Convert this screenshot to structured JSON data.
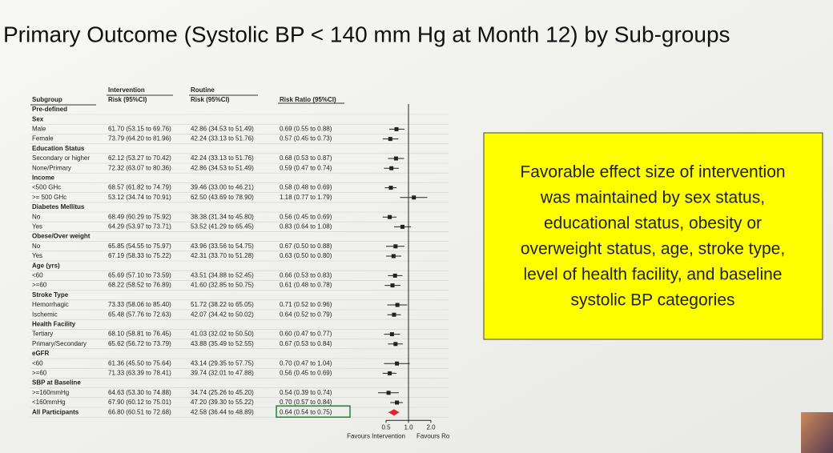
{
  "header": {
    "title": "Primary Outcome (Systolic BP < 140 mm Hg at Month 12) by Sub-groups"
  },
  "table": {
    "group_headers": {
      "intervention": "Intervention",
      "routine": "Routine"
    },
    "columns": {
      "subgroup": "Subgroup",
      "intervention": "Risk (95%CI)",
      "routine": "Risk (95%CI)",
      "ratio": "Risk Ratio (95%CI)"
    },
    "rows": [
      {
        "label": "Pre-defined"
      },
      {
        "label": "Sex"
      },
      {
        "label": "Male",
        "intervention": "61.70 (53.15 to 69.76)",
        "routine": "42.86 (34.53 to 51.49)",
        "ratio": "0.69 (0.55 to 0.88)",
        "rr": [
          0.69,
          0.55,
          0.88
        ]
      },
      {
        "label": "Female",
        "intervention": "73.79 (64.20 to 81.96)",
        "routine": "42.24 (33.13 to 51.76)",
        "ratio": "0.57 (0.45 to 0.73)",
        "rr": [
          0.57,
          0.45,
          0.73
        ]
      },
      {
        "label": "Education Status"
      },
      {
        "label": "Secondary or higher",
        "intervention": "62.12 (53.27 to 70.42)",
        "routine": "42.24 (33.13 to 51.76)",
        "ratio": "0.68 (0.53 to 0.87)",
        "rr": [
          0.68,
          0.53,
          0.87
        ]
      },
      {
        "label": "None/Primary",
        "intervention": "72.32 (63.07 to 80.36)",
        "routine": "42.86 (34.53 to 51.49)",
        "ratio": "0.59 (0.47 to 0.74)",
        "rr": [
          0.59,
          0.47,
          0.74
        ]
      },
      {
        "label": "Income"
      },
      {
        "label": "<500 GHc",
        "intervention": "68.57 (61.82 to 74.79)",
        "routine": "39.46 (33.00 to 46.21)",
        "ratio": "0.58 (0.48 to 0.69)",
        "rr": [
          0.58,
          0.48,
          0.69
        ]
      },
      {
        "label": ">= 500 GHc",
        "intervention": "53.12 (34.74 to 70.91)",
        "routine": "62.50 (43.69 to 78.90)",
        "ratio": "1.18 (0.77 to 1.79)",
        "rr": [
          1.18,
          0.77,
          1.79
        ]
      },
      {
        "label": "Diabetes Mellitus"
      },
      {
        "label": "No",
        "intervention": "68.49 (60.29 to 75.92)",
        "routine": "38.38 (31.34 to 45.80)",
        "ratio": "0.56 (0.45 to 0.69)",
        "rr": [
          0.56,
          0.45,
          0.69
        ]
      },
      {
        "label": "Yes",
        "intervention": "64.29 (53.97 to 73.71)",
        "routine": "53.52 (41.29 to 65.45)",
        "ratio": "0.83 (0.64 to 1.08)",
        "rr": [
          0.83,
          0.64,
          1.08
        ]
      },
      {
        "label": "Obese/Over weight"
      },
      {
        "label": "No",
        "intervention": "65.85 (54.55 to 75.97)",
        "routine": "43.96 (33.56 to 54.75)",
        "ratio": "0.67 (0.50 to 0.88)",
        "rr": [
          0.67,
          0.5,
          0.88
        ]
      },
      {
        "label": "Yes",
        "intervention": "67.19 (58.33 to 75.22)",
        "routine": "42.31 (33.70 to 51.28)",
        "ratio": "0.63 (0.50 to 0.80)",
        "rr": [
          0.63,
          0.5,
          0.8
        ]
      },
      {
        "label": "Age (yrs)"
      },
      {
        "label": "<60",
        "intervention": "65.69 (57.10 to 73.59)",
        "routine": "43.51 (34.88 to 52.45)",
        "ratio": "0.66 (0.53 to 0.83)",
        "rr": [
          0.66,
          0.53,
          0.83
        ]
      },
      {
        "label": ">=60",
        "intervention": "68.22 (58.52 to 76.89)",
        "routine": "41.60 (32.85 to 50.75)",
        "ratio": "0.61 (0.48 to 0.78)",
        "rr": [
          0.61,
          0.48,
          0.78
        ]
      },
      {
        "label": "Stroke Type"
      },
      {
        "label": "Hemorrhagic",
        "intervention": "73.33 (58.06 to 85.40)",
        "routine": "51.72 (38.22 to 65.05)",
        "ratio": "0.71 (0.52 to 0.96)",
        "rr": [
          0.71,
          0.52,
          0.96
        ]
      },
      {
        "label": "Ischemic",
        "intervention": "65.48 (57.76 to 72.63)",
        "routine": "42.07 (34.42 to 50.02)",
        "ratio": "0.64 (0.52 to 0.79)",
        "rr": [
          0.64,
          0.52,
          0.79
        ]
      },
      {
        "label": "Health Facility"
      },
      {
        "label": "Tertiary",
        "intervention": "68.10 (58.81 to 76.45)",
        "routine": "41.03 (32.02 to 50.50)",
        "ratio": "0.60 (0.47 to 0.77)",
        "rr": [
          0.6,
          0.47,
          0.77
        ]
      },
      {
        "label": "Primary/Secondary",
        "intervention": "65.62 (56.72 to 73.79)",
        "routine": "43.88 (35.49 to 52.55)",
        "ratio": "0.67 (0.53 to 0.84)",
        "rr": [
          0.67,
          0.53,
          0.84
        ]
      },
      {
        "label": "eGFR"
      },
      {
        "label": "<60",
        "intervention": "61.36 (45.50 to 75.64)",
        "routine": "43.14 (29.35 to 57.75)",
        "ratio": "0.70 (0.47 to 1.04)",
        "rr": [
          0.7,
          0.47,
          1.04
        ]
      },
      {
        "label": ">=60",
        "intervention": "71.33 (63.39 to 78.41)",
        "routine": "39.74 (32.01 to 47.88)",
        "ratio": "0.56 (0.45 to 0.69)",
        "rr": [
          0.56,
          0.45,
          0.69
        ]
      },
      {
        "label": "SBP at Baseline"
      },
      {
        "label": ">=160mmHg",
        "intervention": "64.63 (53.30 to 74.88)",
        "routine": "34.74 (25.26 to 45.20)",
        "ratio": "0.54 (0.39 to 0.74)",
        "rr": [
          0.54,
          0.39,
          0.74
        ]
      },
      {
        "label": "<160mmHg",
        "intervention": "67.90 (60.12 to 75.01)",
        "routine": "47.20 (39.30 to 55.22)",
        "ratio": "0.70 (0.57 to 0.84)",
        "rr": [
          0.7,
          0.57,
          0.84
        ]
      },
      {
        "label": "All Participants",
        "intervention": "66.80 (60.51 to 72.68)",
        "routine": "42.58 (36.44 to 48.89)",
        "ratio": "0.64 (0.54 to 0.75)",
        "rr": [
          0.64,
          0.54,
          0.75
        ],
        "overall": true
      }
    ]
  },
  "forest": {
    "log": true,
    "xticks": [
      0.5,
      {
        "value": 1,
        "label": "1.0"
      },
      {
        "value": 2,
        "label": "2.0"
      }
    ],
    "left_label": "Favours Intervention",
    "right_label": "Favours Ro"
  },
  "callout": {
    "lines": [
      "Favorable effect size of intervention",
      "was maintained by sex status,",
      "educational status, obesity or",
      "overweight status, age, stroke type,",
      "level of health facility, and baseline",
      "systolic BP categories"
    ]
  }
}
